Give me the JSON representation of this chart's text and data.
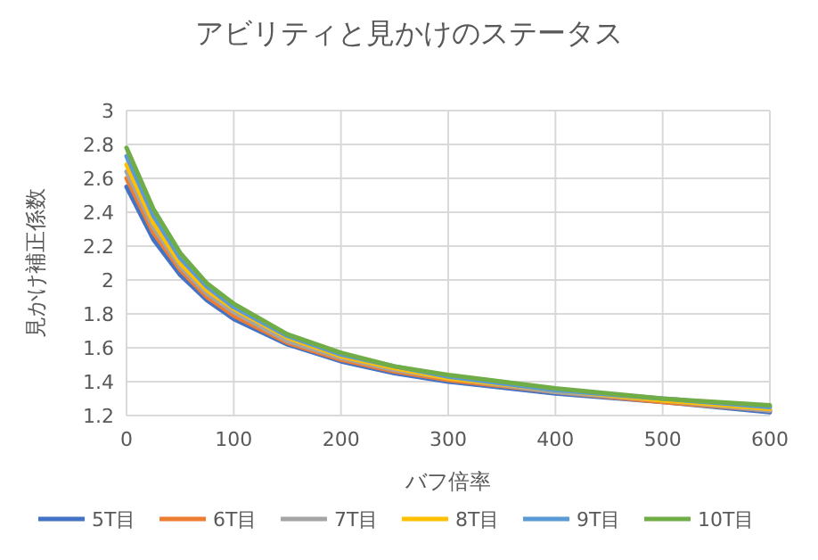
{
  "chart_data": {
    "type": "line",
    "title": "アビリティと見かけのステータス",
    "xlabel": "バフ倍率",
    "ylabel": "見かけ補正係数",
    "x": [
      0,
      25,
      50,
      75,
      100,
      150,
      200,
      250,
      300,
      400,
      500,
      600
    ],
    "xlim": [
      0,
      600
    ],
    "xticks": [
      0,
      100,
      200,
      300,
      400,
      500,
      600
    ],
    "ylim": [
      1.2,
      3
    ],
    "yticks": [
      1.2,
      1.4,
      1.6,
      1.8,
      2,
      2.2,
      2.4,
      2.6,
      2.8,
      3
    ],
    "grid": true,
    "legend": "bottom",
    "marker": "none",
    "line_style": "solid",
    "series": [
      {
        "name": "5T目",
        "color": "#4472c4",
        "values": [
          2.55,
          2.24,
          2.03,
          1.88,
          1.77,
          1.62,
          1.52,
          1.45,
          1.4,
          1.33,
          1.28,
          1.22
        ]
      },
      {
        "name": "6T目",
        "color": "#ed7d31",
        "values": [
          2.6,
          2.28,
          2.06,
          1.9,
          1.79,
          1.63,
          1.53,
          1.46,
          1.41,
          1.34,
          1.28,
          1.23
        ]
      },
      {
        "name": "7T目",
        "color": "#a5a5a5",
        "values": [
          2.64,
          2.31,
          2.08,
          1.92,
          1.81,
          1.64,
          1.54,
          1.47,
          1.42,
          1.34,
          1.29,
          1.23
        ]
      },
      {
        "name": "8T目",
        "color": "#ffc000",
        "values": [
          2.68,
          2.34,
          2.1,
          1.94,
          1.83,
          1.66,
          1.55,
          1.48,
          1.42,
          1.35,
          1.29,
          1.24
        ]
      },
      {
        "name": "9T目",
        "color": "#5b9bd5",
        "values": [
          2.73,
          2.38,
          2.13,
          1.96,
          1.84,
          1.67,
          1.56,
          1.49,
          1.43,
          1.35,
          1.3,
          1.25
        ]
      },
      {
        "name": "10T目",
        "color": "#70ad47",
        "values": [
          2.78,
          2.42,
          2.16,
          1.98,
          1.86,
          1.68,
          1.57,
          1.49,
          1.44,
          1.36,
          1.3,
          1.26
        ]
      }
    ]
  }
}
